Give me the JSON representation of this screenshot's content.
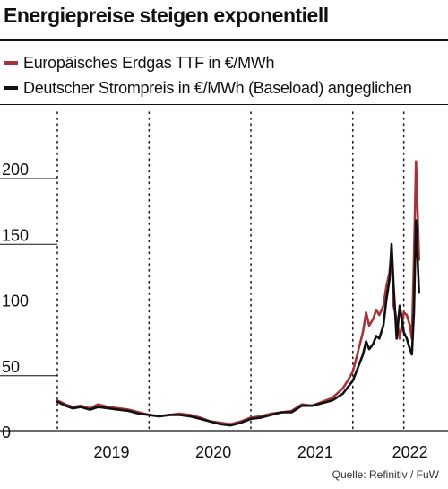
{
  "chart_data": {
    "type": "line",
    "title": "Energiepreise steigen exponentiell",
    "source": "Quelle: Refinitiv / FuW",
    "ylim": [
      0,
      215
    ],
    "xlim": [
      2018.6,
      2022.35
    ],
    "yticks": [
      0,
      50,
      100,
      150,
      200
    ],
    "ytick_labels": [
      "0",
      "50",
      "100",
      "150",
      "200"
    ],
    "xticks": [
      2019,
      2020,
      2021,
      2022
    ],
    "xtick_labels": [
      "2019",
      "2020",
      "2021",
      "2022"
    ],
    "grid": "vertical-dotted",
    "legend_position": "top-left",
    "series": [
      {
        "name": "Europäisches Erdgas TTF in €/MWh",
        "color": "#a4343a",
        "x": [
          2018.6,
          2018.68,
          2018.75,
          2018.83,
          2018.92,
          2019.0,
          2019.1,
          2019.2,
          2019.3,
          2019.4,
          2019.5,
          2019.6,
          2019.7,
          2019.8,
          2019.9,
          2020.0,
          2020.1,
          2020.2,
          2020.3,
          2020.4,
          2020.5,
          2020.6,
          2020.7,
          2020.8,
          2020.9,
          2021.0,
          2021.1,
          2021.2,
          2021.3,
          2021.4,
          2021.45,
          2021.5,
          2021.55,
          2021.6,
          2021.63,
          2021.66,
          2021.7,
          2021.73,
          2021.76,
          2021.8,
          2021.83,
          2021.86,
          2021.88,
          2021.9,
          2021.93,
          2021.96,
          2022.0,
          2022.03,
          2022.06,
          2022.08,
          2022.1,
          2022.12,
          2022.15
        ],
        "y": [
          23,
          20,
          18,
          19,
          17,
          20,
          18,
          17,
          16,
          14,
          12,
          11,
          12,
          13,
          12,
          10,
          7,
          6,
          5,
          7,
          10,
          11,
          13,
          14,
          15,
          20,
          19,
          22,
          25,
          32,
          38,
          45,
          60,
          75,
          90,
          80,
          85,
          92,
          88,
          95,
          110,
          120,
          135,
          95,
          85,
          70,
          90,
          88,
          80,
          70,
          130,
          205,
          130
        ]
      },
      {
        "name": "Deutscher Strompreis in €/MWh (Baseload) angeglichen",
        "color": "#111111",
        "x": [
          2018.6,
          2018.68,
          2018.75,
          2018.83,
          2018.92,
          2019.0,
          2019.1,
          2019.2,
          2019.3,
          2019.4,
          2019.5,
          2019.6,
          2019.7,
          2019.8,
          2019.9,
          2020.0,
          2020.1,
          2020.2,
          2020.3,
          2020.4,
          2020.5,
          2020.6,
          2020.7,
          2020.8,
          2020.9,
          2021.0,
          2021.1,
          2021.2,
          2021.3,
          2021.4,
          2021.45,
          2021.5,
          2021.55,
          2021.6,
          2021.63,
          2021.66,
          2021.7,
          2021.73,
          2021.76,
          2021.8,
          2021.83,
          2021.86,
          2021.88,
          2021.9,
          2021.93,
          2021.96,
          2022.0,
          2022.03,
          2022.06,
          2022.08,
          2022.1,
          2022.12,
          2022.15
        ],
        "y": [
          22,
          19,
          17,
          18,
          16,
          18,
          17,
          16,
          15,
          13,
          12,
          11,
          12,
          12,
          11,
          9,
          7,
          5,
          4,
          6,
          9,
          10,
          12,
          14,
          14,
          19,
          19,
          21,
          23,
          28,
          33,
          38,
          48,
          58,
          68,
          62,
          66,
          72,
          70,
          80,
          100,
          115,
          142,
          110,
          70,
          95,
          75,
          70,
          62,
          58,
          90,
          160,
          105
        ]
      }
    ]
  }
}
